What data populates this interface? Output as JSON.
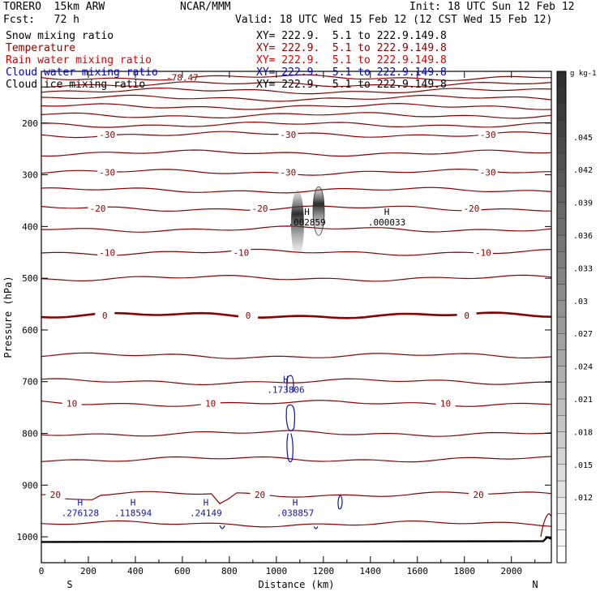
{
  "header": {
    "model": "TORERO  15km ARW",
    "fcst": "Fcst:   72 h",
    "center": "NCAR/MMM",
    "init": "Init: 18 UTC Sun 12 Feb 12",
    "valid": "Valid: 18 UTC Wed 15 Feb 12 (12 CST Wed 15 Feb 12)"
  },
  "legend": [
    {
      "name": "Snow mixing ratio",
      "xy": "XY= 222.9.  5.1 to 222.9.149.8",
      "color": "#000000"
    },
    {
      "name": "Temperature",
      "xy": "XY= 222.9.  5.1 to 222.9.149.8",
      "color": "#8b0000"
    },
    {
      "name": "Rain water mixing ratio",
      "xy": "XY= 222.9.  5.1 to 222.9.149.8",
      "color": "#dd0000"
    },
    {
      "name": "Cloud water mixing ratio",
      "xy": "XY= 222.9.  5.1 to 222.9.149.8",
      "color": "#0000bb"
    },
    {
      "name": "Cloud ice mixing ratio",
      "xy": "XY= 222.9.  5.1 to 222.9.149.8",
      "color": "#000000"
    }
  ],
  "colors": {
    "temperature": "#8b0000",
    "cloud_water": "#1010b0",
    "axis": "#000000"
  },
  "chart_data": {
    "type": "cross-section",
    "xlabel": "Distance (km)",
    "ylabel": "Pressure (hPa)",
    "xlim": [
      0,
      2170
    ],
    "ylim": [
      1050,
      100
    ],
    "x_ticks": [
      0,
      200,
      400,
      600,
      800,
      1000,
      1200,
      1400,
      1600,
      1800,
      2000
    ],
    "y_ticks": [
      200,
      300,
      400,
      500,
      600,
      700,
      800,
      900,
      1000
    ],
    "left_end_label": "S",
    "right_end_label": "N",
    "temperature_contours": [
      {
        "p": 112,
        "label": "-78.47",
        "label_x": 600
      },
      {
        "p": 125
      },
      {
        "p": 138
      },
      {
        "p": 152
      },
      {
        "p": 168
      },
      {
        "p": 185
      },
      {
        "p": 203
      },
      {
        "p": 222,
        "label": "-30",
        "label_xs": [
          280,
          1050,
          1900
        ]
      },
      {
        "p": 258
      },
      {
        "p": 295,
        "label": "-30",
        "label_xs": [
          280,
          1050,
          1900
        ]
      },
      {
        "p": 330
      },
      {
        "p": 365,
        "label": "-20",
        "label_xs": [
          240,
          930,
          1830
        ]
      },
      {
        "p": 405
      },
      {
        "p": 450,
        "label": "-10",
        "label_xs": [
          280,
          850,
          1880
        ]
      },
      {
        "p": 500
      },
      {
        "p": 572,
        "label": "0",
        "label_xs": [
          270,
          880,
          1810
        ],
        "bold": true
      },
      {
        "p": 650
      },
      {
        "p": 700
      },
      {
        "p": 742,
        "label": "10",
        "label_xs": [
          130,
          720,
          1720
        ]
      },
      {
        "p": 800
      },
      {
        "p": 850
      },
      {
        "p": 918,
        "label": "20",
        "label_xs": [
          60,
          930,
          1860
        ]
      },
      {
        "p": 975
      }
    ],
    "highs": [
      {
        "x": 1130,
        "p": 393,
        "label": ".002859"
      },
      {
        "x": 1470,
        "p": 393,
        "label": ".000033"
      },
      {
        "x": 1040,
        "p": 717,
        "label": ".173806"
      },
      {
        "x": 165,
        "p": 955,
        "label": ".276128"
      },
      {
        "x": 390,
        "p": 955,
        "label": ".118594"
      },
      {
        "x": 700,
        "p": 955,
        "label": ".24149"
      },
      {
        "x": 1080,
        "p": 955,
        "label": ".038857"
      }
    ],
    "colorbar": {
      "units": "g kg-1",
      "ticks": [
        ".045",
        ".042",
        ".039",
        ".036",
        ".033",
        ".03",
        ".027",
        ".024",
        ".021",
        ".018",
        ".015",
        ".012"
      ],
      "tick_values": [
        0.045,
        0.042,
        0.039,
        0.036,
        0.033,
        0.03,
        0.027,
        0.024,
        0.021,
        0.018,
        0.015,
        0.012
      ],
      "range": [
        0.006,
        0.051
      ]
    }
  }
}
